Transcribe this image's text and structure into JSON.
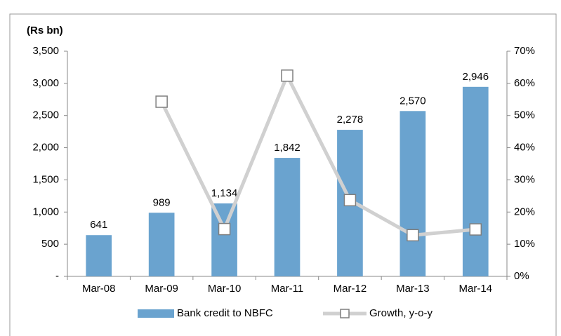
{
  "chart_data": {
    "type": "bar",
    "title": "(Rs bn)",
    "categories": [
      "Mar-08",
      "Mar-09",
      "Mar-10",
      "Mar-11",
      "Mar-12",
      "Mar-13",
      "Mar-14"
    ],
    "series": [
      {
        "name": "Bank credit to NBFC",
        "type": "bar",
        "color": "#6aa3cf",
        "values": [
          641,
          989,
          1134,
          1842,
          2278,
          2570,
          2946
        ],
        "value_labels": [
          "641",
          "989",
          "1,134",
          "1,842",
          "2,278",
          "2,570",
          "2,946"
        ]
      },
      {
        "name": "Growth, y-o-y",
        "type": "line",
        "axis": "y2",
        "color": "#d0d0d0",
        "values": [
          null,
          54.3,
          14.7,
          62.4,
          23.7,
          12.8,
          14.6
        ]
      }
    ],
    "ylim": [
      0,
      3500
    ],
    "yticks": [
      {
        "value": 0,
        "label": "-"
      },
      500,
      {
        "value": 1000,
        "label": "1,000"
      },
      {
        "value": 1500,
        "label": "1,500"
      },
      {
        "value": 2000,
        "label": "2,000"
      },
      {
        "value": 2500,
        "label": "2,500"
      },
      {
        "value": 3000,
        "label": "3,000"
      },
      {
        "value": 3500,
        "label": "3,500"
      }
    ],
    "y2lim": [
      0,
      70
    ],
    "y2ticks": [
      {
        "value": 0,
        "label": "0%"
      },
      {
        "value": 10,
        "label": "10%"
      },
      {
        "value": 20,
        "label": "20%"
      },
      {
        "value": 30,
        "label": "30%"
      },
      {
        "value": 40,
        "label": "40%"
      },
      {
        "value": 50,
        "label": "50%"
      },
      {
        "value": 60,
        "label": "60%"
      },
      {
        "value": 70,
        "label": "70%"
      }
    ],
    "legend": "bottom"
  }
}
